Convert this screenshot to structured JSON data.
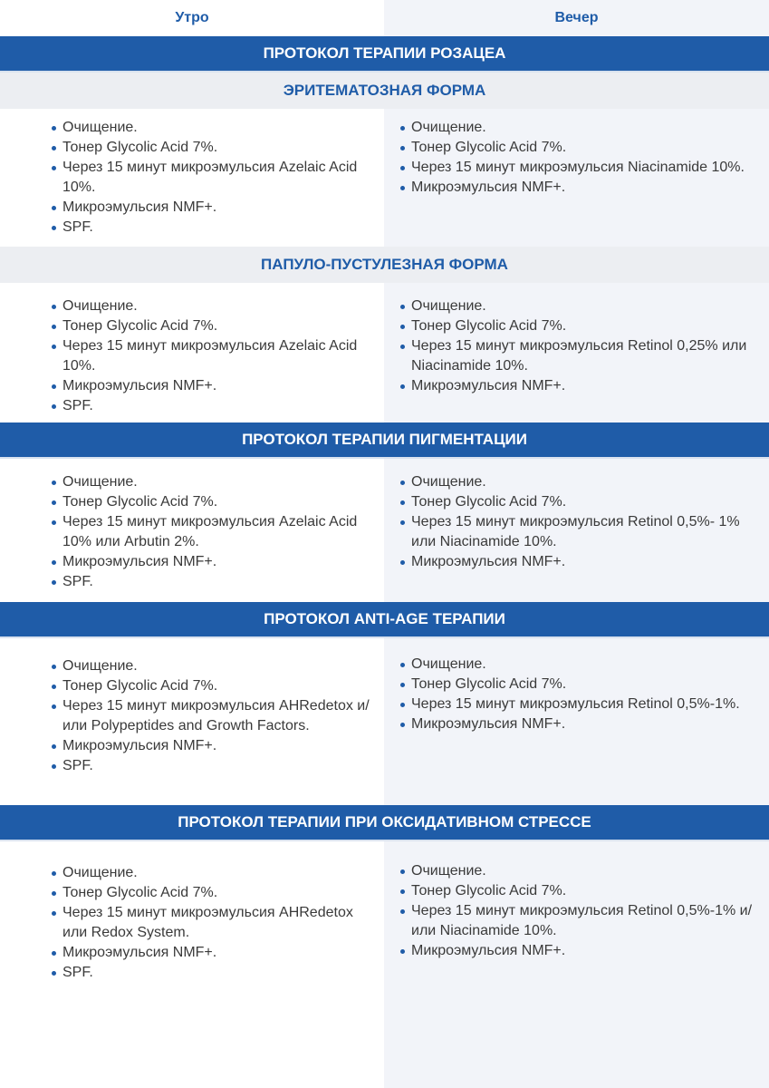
{
  "columns": {
    "morning": "Утро",
    "evening": "Вечер"
  },
  "colors": {
    "accent": "#1f5ca8",
    "right_column_bg": "#f2f4f9",
    "subheader_bg": "#eceef2"
  },
  "sections": [
    {
      "band": "ПРОТОКОЛ ТЕРАПИИ РОЗАЦЕА"
    },
    {
      "subheader": "ЭРИТЕМАТОЗНАЯ ФОРМА",
      "morning": [
        "Очищение.",
        "Тонер Glycolic Acid 7%.",
        "Через 15 минут микроэмульсия Azelaic Acid 10%.",
        "Микроэмульсия NMF+.",
        "SPF."
      ],
      "evening": [
        "Очищение.",
        "Тонер Glycolic Acid 7%.",
        "Через 15 минут микроэмульсия Niacinamide 10%.",
        "Микроэмульсия NMF+."
      ]
    },
    {
      "subheader": "ПАПУЛО-ПУСТУЛЕЗНАЯ ФОРМА",
      "morning": [
        "Очищение.",
        "Тонер Glycolic Acid 7%.",
        "Через 15 минут микроэмульсия Azelaic Acid 10%.",
        "Микроэмульсия NMF+.",
        "SPF."
      ],
      "evening": [
        "Очищение.",
        "Тонер Glycolic Acid 7%.",
        "Через 15 минут микроэмульсия Retinol 0,25% или Niacinamide 10%.",
        "Микроэмульсия NMF+."
      ]
    },
    {
      "band": "ПРОТОКОЛ ТЕРАПИИ ПИГМЕНТАЦИИ",
      "morning": [
        "Очищение.",
        "Тонер Glycolic Acid 7%.",
        "Через 15 минут микроэмульсия Azelaic Acid 10% или Arbutin 2%.",
        "Микроэмульсия NMF+.",
        "SPF."
      ],
      "evening": [
        "Очищение.",
        "Тонер Glycolic Acid 7%.",
        "Через 15 минут микроэмульсия Retinol 0,5%- 1% или Niacinamide 10%.",
        "Микроэмульсия NMF+."
      ]
    },
    {
      "band": "ПРОТОКОЛ ANTI-AGE ТЕРАПИИ",
      "morning": [
        "Очищение.",
        "Тонер Glycolic Acid 7%.",
        "Через 15 минут микроэмульсия AHRedetox и/или Polypeptides and Growth Factors.",
        "Микроэмульсия NMF+.",
        "SPF."
      ],
      "evening": [
        "Очищение.",
        "Тонер Glycolic Acid 7%.",
        "Через 15 минут микроэмульсия Retinol 0,5%-1%.",
        "Микроэмульсия NMF+."
      ]
    },
    {
      "band": "ПРОТОКОЛ ТЕРАПИИ ПРИ ОКСИДАТИВНОМ СТРЕССЕ",
      "morning": [
        "Очищение.",
        "Тонер Glycolic Acid 7%.",
        "Через 15 минут микроэмульсия AHRedetox или Redox System.",
        "Микроэмульсия NMF+.",
        "SPF."
      ],
      "evening": [
        "Очищение.",
        "Тонер Glycolic Acid 7%.",
        "Через 15 минут микроэмульсия Retinol 0,5%-1% и/или Niacinamide 10%.",
        "Микроэмульсия NMF+."
      ]
    }
  ]
}
